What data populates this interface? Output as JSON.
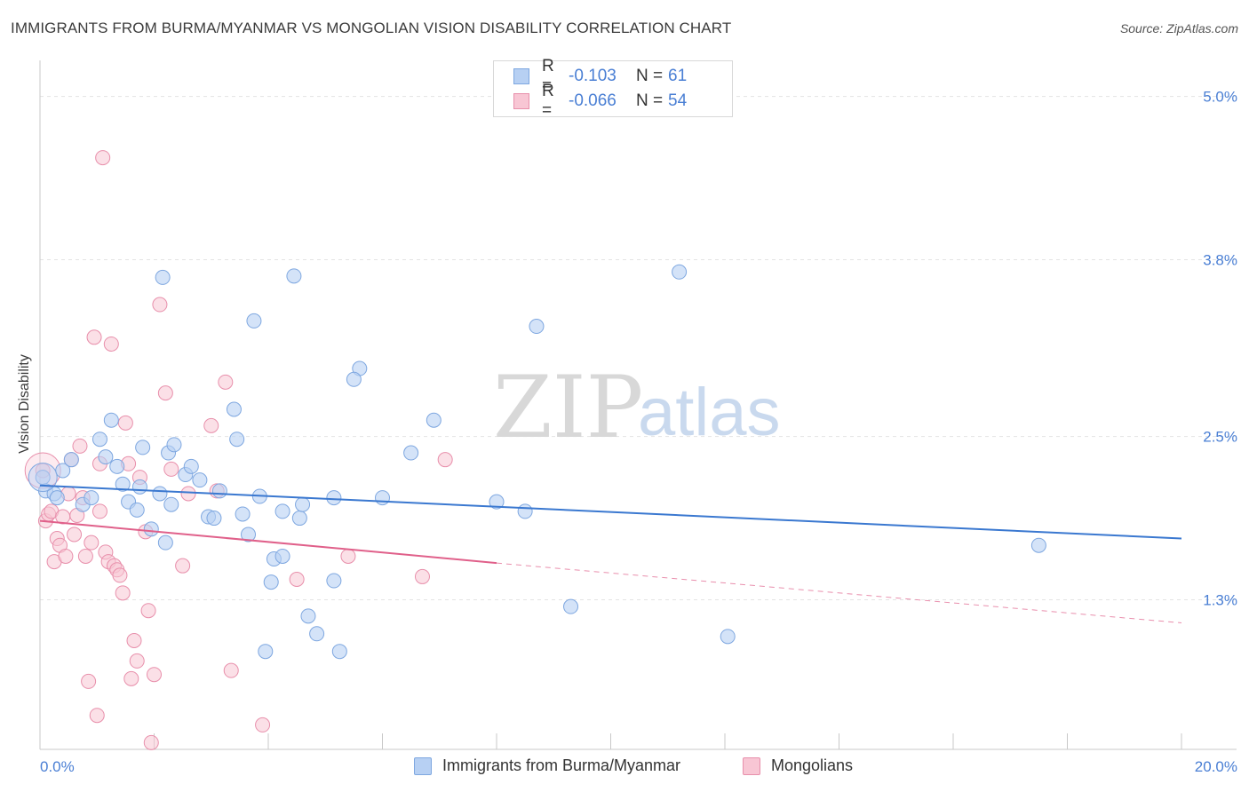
{
  "title": "IMMIGRANTS FROM BURMA/MYANMAR VS MONGOLIAN VISION DISABILITY CORRELATION CHART",
  "source": "Source: ZipAtlas.com",
  "watermark": {
    "zip": "ZIP",
    "atlas": "atlas"
  },
  "colors": {
    "blue_fill": "#b7d0f3",
    "blue_stroke": "#7ea7e0",
    "blue_line": "#3a78d0",
    "pink_fill": "#f8c6d4",
    "pink_stroke": "#e88fab",
    "pink_line": "#e0608a",
    "tick": "#4a7fd4",
    "grid": "#e3e3e3"
  },
  "legend": {
    "rows": [
      {
        "r_label": "R =",
        "r_value": "-0.103",
        "n_label": "N =",
        "n_value": "61"
      },
      {
        "r_label": "R =",
        "r_value": "-0.066",
        "n_label": "N =",
        "n_value": "54"
      }
    ]
  },
  "bottom_legend": {
    "series1": "Immigrants from Burma/Myanmar",
    "series2": "Mongolians"
  },
  "chart_data": {
    "type": "scatter",
    "title": "IMMIGRANTS FROM BURMA/MYANMAR VS MONGOLIAN VISION DISABILITY CORRELATION CHART",
    "xlabel": "",
    "ylabel": "Vision Disability",
    "xlim": [
      0,
      20
    ],
    "ylim": [
      0.2,
      5.2
    ],
    "x_tick_labels": [
      "0.0%",
      "20.0%"
    ],
    "y_ticks": [
      1.3,
      2.5,
      3.8,
      5.0
    ],
    "y_tick_labels": [
      "1.3%",
      "2.5%",
      "3.8%",
      "5.0%"
    ],
    "grid": true,
    "series": [
      {
        "name": "Immigrants from Burma/Myanmar",
        "r": -0.103,
        "n": 61,
        "trend": {
          "x0": 0,
          "y0": 2.14,
          "x1": 20,
          "y1": 1.75
        },
        "points": [
          [
            0.05,
            2.2
          ],
          [
            0.1,
            2.1
          ],
          [
            0.25,
            2.08
          ],
          [
            0.3,
            2.05
          ],
          [
            0.4,
            2.25
          ],
          [
            0.55,
            2.33
          ],
          [
            0.75,
            2.0
          ],
          [
            0.9,
            2.05
          ],
          [
            1.05,
            2.48
          ],
          [
            1.15,
            2.35
          ],
          [
            1.25,
            2.62
          ],
          [
            1.35,
            2.28
          ],
          [
            1.45,
            2.15
          ],
          [
            1.55,
            2.02
          ],
          [
            1.7,
            1.96
          ],
          [
            1.75,
            2.13
          ],
          [
            1.8,
            2.42
          ],
          [
            1.95,
            1.82
          ],
          [
            2.1,
            2.08
          ],
          [
            2.2,
            1.72
          ],
          [
            2.3,
            2.0
          ],
          [
            2.15,
            3.67
          ],
          [
            2.25,
            2.38
          ],
          [
            2.35,
            2.44
          ],
          [
            2.55,
            2.22
          ],
          [
            2.65,
            2.28
          ],
          [
            2.8,
            2.18
          ],
          [
            2.95,
            1.91
          ],
          [
            3.05,
            1.9
          ],
          [
            3.15,
            2.1
          ],
          [
            3.45,
            2.48
          ],
          [
            3.4,
            2.7
          ],
          [
            3.55,
            1.93
          ],
          [
            3.65,
            1.78
          ],
          [
            3.75,
            3.35
          ],
          [
            3.85,
            2.06
          ],
          [
            3.95,
            0.92
          ],
          [
            4.05,
            1.43
          ],
          [
            4.1,
            1.6
          ],
          [
            4.25,
            1.62
          ],
          [
            4.25,
            1.95
          ],
          [
            4.45,
            3.68
          ],
          [
            4.55,
            1.9
          ],
          [
            4.6,
            2.0
          ],
          [
            4.7,
            1.18
          ],
          [
            4.85,
            1.05
          ],
          [
            5.15,
            1.44
          ],
          [
            5.25,
            0.92
          ],
          [
            5.15,
            2.05
          ],
          [
            5.6,
            3.0
          ],
          [
            5.5,
            2.92
          ],
          [
            6.0,
            2.05
          ],
          [
            6.5,
            2.38
          ],
          [
            6.9,
            2.62
          ],
          [
            8.0,
            2.02
          ],
          [
            8.7,
            3.31
          ],
          [
            9.3,
            1.25
          ],
          [
            11.2,
            3.71
          ],
          [
            12.05,
            1.03
          ],
          [
            17.5,
            1.7
          ],
          [
            8.5,
            1.95
          ]
        ]
      },
      {
        "name": "Mongolians",
        "r": -0.066,
        "n": 54,
        "trend": {
          "x0": 0,
          "y0": 1.88,
          "x1": 8.0,
          "y1": 1.57,
          "x2": 20,
          "y2": 1.13
        },
        "points": [
          [
            0.05,
            2.25
          ],
          [
            0.1,
            1.88
          ],
          [
            0.15,
            1.93
          ],
          [
            0.2,
            1.95
          ],
          [
            0.25,
            1.58
          ],
          [
            0.3,
            1.75
          ],
          [
            0.35,
            1.7
          ],
          [
            0.4,
            1.91
          ],
          [
            0.45,
            1.62
          ],
          [
            0.5,
            2.08
          ],
          [
            0.55,
            2.33
          ],
          [
            0.6,
            1.78
          ],
          [
            0.65,
            1.92
          ],
          [
            0.7,
            2.43
          ],
          [
            0.75,
            2.05
          ],
          [
            0.8,
            1.62
          ],
          [
            0.85,
            0.7
          ],
          [
            0.9,
            1.72
          ],
          [
            0.95,
            3.23
          ],
          [
            1.0,
            0.45
          ],
          [
            1.05,
            1.95
          ],
          [
            1.05,
            2.3
          ],
          [
            1.1,
            4.55
          ],
          [
            1.15,
            1.65
          ],
          [
            1.2,
            1.58
          ],
          [
            1.25,
            3.18
          ],
          [
            1.3,
            1.55
          ],
          [
            1.35,
            1.52
          ],
          [
            1.4,
            1.48
          ],
          [
            1.45,
            1.35
          ],
          [
            1.5,
            2.6
          ],
          [
            1.55,
            2.3
          ],
          [
            1.6,
            0.72
          ],
          [
            1.65,
            1.0
          ],
          [
            1.7,
            0.85
          ],
          [
            1.75,
            2.2
          ],
          [
            1.85,
            1.8
          ],
          [
            1.9,
            1.22
          ],
          [
            1.95,
            0.25
          ],
          [
            2.0,
            0.75
          ],
          [
            2.1,
            3.47
          ],
          [
            2.2,
            2.82
          ],
          [
            2.3,
            2.26
          ],
          [
            2.5,
            1.55
          ],
          [
            2.6,
            2.08
          ],
          [
            3.0,
            2.58
          ],
          [
            3.1,
            2.1
          ],
          [
            3.25,
            2.9
          ],
          [
            3.35,
            0.78
          ],
          [
            3.9,
            0.38
          ],
          [
            4.5,
            1.45
          ],
          [
            5.4,
            1.62
          ],
          [
            6.7,
            1.47
          ],
          [
            7.1,
            2.33
          ]
        ]
      }
    ]
  }
}
